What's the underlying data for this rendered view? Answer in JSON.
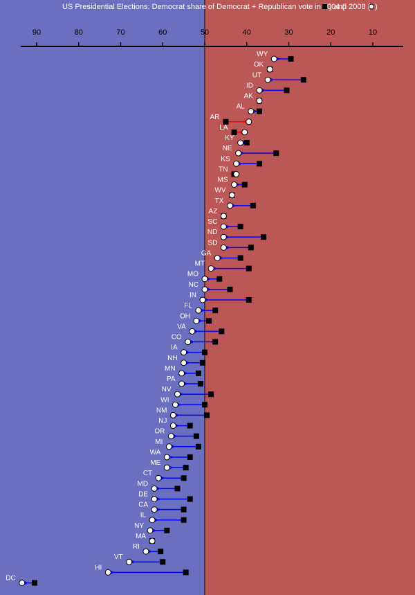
{
  "chart_data": {
    "type": "dot-arrow",
    "title": "US Presidential Elections: Democrat share of Democrat + Republican  vote in 2004 (",
    "title_mid": ") and 2008 (",
    "title_end": ")",
    "x_ticks": [
      90,
      80,
      70,
      60,
      50,
      40,
      30,
      20,
      10
    ],
    "xlim": [
      95,
      3
    ],
    "x_reversed": true,
    "grid": false,
    "colors": {
      "democrat_bg": "#6A6FBF",
      "republican_bg": "#BC5757",
      "arrow_gain": "#0000FF",
      "arrow_loss": "#FF0000",
      "marker_2004": "#000000",
      "marker_2008": "#FFFFFF"
    },
    "series": [
      {
        "name": "2004",
        "marker": "filled-square"
      },
      {
        "name": "2008",
        "marker": "open-circle"
      }
    ],
    "states": [
      {
        "state": "WY",
        "y2004": 29.5,
        "y2008": 33.5
      },
      {
        "state": "OK",
        "y2004": 34.5,
        "y2008": 34.5
      },
      {
        "state": "UT",
        "y2004": 26.5,
        "y2008": 35.0
      },
      {
        "state": "ID",
        "y2004": 30.5,
        "y2008": 37.0
      },
      {
        "state": "AK",
        "y2004": 37.0,
        "y2008": 37.0
      },
      {
        "state": "AL",
        "y2004": 37.0,
        "y2008": 39.0
      },
      {
        "state": "AR",
        "y2004": 45.0,
        "y2008": 39.5
      },
      {
        "state": "LA",
        "y2004": 43.0,
        "y2008": 40.5
      },
      {
        "state": "KY",
        "y2004": 40.0,
        "y2008": 41.5
      },
      {
        "state": "NE",
        "y2004": 33.0,
        "y2008": 42.0
      },
      {
        "state": "KS",
        "y2004": 37.0,
        "y2008": 42.5
      },
      {
        "state": "TN",
        "y2004": 43.0,
        "y2008": 42.5
      },
      {
        "state": "MS",
        "y2004": 40.5,
        "y2008": 43.0
      },
      {
        "state": "WV",
        "y2004": 43.5,
        "y2008": 43.5
      },
      {
        "state": "TX",
        "y2004": 38.5,
        "y2008": 44.0
      },
      {
        "state": "AZ",
        "y2004": 45.5,
        "y2008": 45.5
      },
      {
        "state": "SC",
        "y2004": 41.5,
        "y2008": 45.5
      },
      {
        "state": "ND",
        "y2004": 36.0,
        "y2008": 45.5
      },
      {
        "state": "SD",
        "y2004": 39.0,
        "y2008": 45.5
      },
      {
        "state": "GA",
        "y2004": 41.5,
        "y2008": 47.0
      },
      {
        "state": "MT",
        "y2004": 39.5,
        "y2008": 48.5
      },
      {
        "state": "MO",
        "y2004": 46.5,
        "y2008": 50.0
      },
      {
        "state": "NC",
        "y2004": 44.0,
        "y2008": 50.0
      },
      {
        "state": "IN",
        "y2004": 39.5,
        "y2008": 50.5
      },
      {
        "state": "FL",
        "y2004": 47.5,
        "y2008": 51.5
      },
      {
        "state": "OH",
        "y2004": 49.0,
        "y2008": 52.0
      },
      {
        "state": "VA",
        "y2004": 46.0,
        "y2008": 53.0
      },
      {
        "state": "CO",
        "y2004": 47.5,
        "y2008": 54.0
      },
      {
        "state": "IA",
        "y2004": 50.0,
        "y2008": 55.0
      },
      {
        "state": "NH",
        "y2004": 50.5,
        "y2008": 55.0
      },
      {
        "state": "MN",
        "y2004": 51.5,
        "y2008": 55.5
      },
      {
        "state": "PA",
        "y2004": 51.0,
        "y2008": 55.5
      },
      {
        "state": "NV",
        "y2004": 48.5,
        "y2008": 56.5
      },
      {
        "state": "WI",
        "y2004": 50.0,
        "y2008": 57.0
      },
      {
        "state": "NM",
        "y2004": 49.5,
        "y2008": 57.5
      },
      {
        "state": "NJ",
        "y2004": 53.5,
        "y2008": 57.5
      },
      {
        "state": "OR",
        "y2004": 52.0,
        "y2008": 58.0
      },
      {
        "state": "MI",
        "y2004": 51.5,
        "y2008": 58.5
      },
      {
        "state": "WA",
        "y2004": 53.5,
        "y2008": 59.0
      },
      {
        "state": "ME",
        "y2004": 54.5,
        "y2008": 59.0
      },
      {
        "state": "CT",
        "y2004": 55.0,
        "y2008": 61.0
      },
      {
        "state": "MD",
        "y2004": 56.5,
        "y2008": 62.0
      },
      {
        "state": "DE",
        "y2004": 53.5,
        "y2008": 62.0
      },
      {
        "state": "CA",
        "y2004": 55.0,
        "y2008": 62.0
      },
      {
        "state": "IL",
        "y2004": 55.0,
        "y2008": 62.5
      },
      {
        "state": "NY",
        "y2004": 59.0,
        "y2008": 63.0
      },
      {
        "state": "MA",
        "y2004": 62.5,
        "y2008": 62.5
      },
      {
        "state": "RI",
        "y2004": 60.5,
        "y2008": 64.0
      },
      {
        "state": "VT",
        "y2004": 60.0,
        "y2008": 68.0
      },
      {
        "state": "HI",
        "y2004": 54.5,
        "y2008": 73.0
      },
      {
        "state": "DC",
        "y2004": 90.5,
        "y2008": 93.5
      }
    ]
  }
}
